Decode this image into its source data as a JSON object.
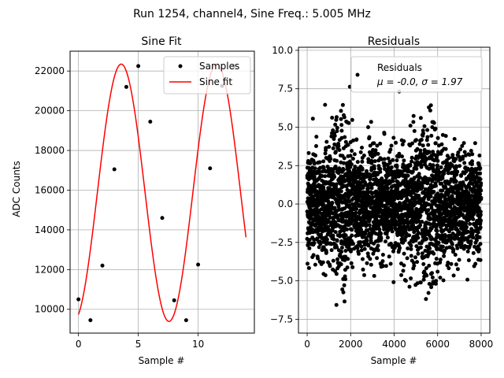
{
  "suptitle": "Run 1254, channel4, Sine Freq.: 5.005 MHz",
  "chart_data": [
    {
      "type": "line",
      "title": "Sine Fit",
      "xlabel": "Sample #",
      "ylabel": "ADC Counts",
      "xlim": [
        -0.7,
        14.7
      ],
      "ylim": [
        8800,
        23000
      ],
      "xticks": [
        0,
        5,
        10
      ],
      "yticks": [
        10000,
        12000,
        14000,
        16000,
        18000,
        20000,
        22000
      ],
      "grid": true,
      "legend_position": "top-right",
      "samples": {
        "name": "Samples",
        "color": "#000000",
        "x": [
          0,
          1,
          2,
          3,
          4,
          5,
          6,
          7,
          8,
          9,
          10,
          11,
          12,
          13
        ],
        "y": [
          10500,
          9450,
          12200,
          17050,
          21200,
          22250,
          19450,
          14600,
          10450,
          9450,
          12250,
          17100,
          21250,
          22250
        ]
      },
      "fit": {
        "name": "Sine fit",
        "color": "#ff0000",
        "x_range": [
          0,
          14
        ],
        "offset": 15870,
        "amplitude": 6480,
        "period": 7.982,
        "phase": -1.242
      }
    },
    {
      "type": "scatter",
      "title": "Residuals",
      "xlabel": "Sample #",
      "ylabel": "",
      "xlim": [
        -400,
        8400
      ],
      "ylim": [
        -8.4,
        10.2
      ],
      "xticks": [
        0,
        2000,
        4000,
        6000,
        8000
      ],
      "xtick_labels": [
        "0",
        "2000",
        "4000",
        "6000",
        "8000"
      ],
      "yticks": [
        -7.5,
        -5.0,
        -2.5,
        0.0,
        2.5,
        5.0,
        7.5,
        10.0
      ],
      "ytick_labels": [
        "−7.5",
        "−5.0",
        "−2.5",
        "0.0",
        "2.5",
        "5.0",
        "7.5",
        "10.0"
      ],
      "grid": true,
      "legend_position": "top-right",
      "series": {
        "name": "Residuals",
        "color": "#000000",
        "n_points": 8000,
        "mean": -0.0,
        "std": 1.97,
        "min": -8.0,
        "max": 9.2
      },
      "legend_stats_label": "μ = -0.0, σ = 1.97"
    }
  ]
}
